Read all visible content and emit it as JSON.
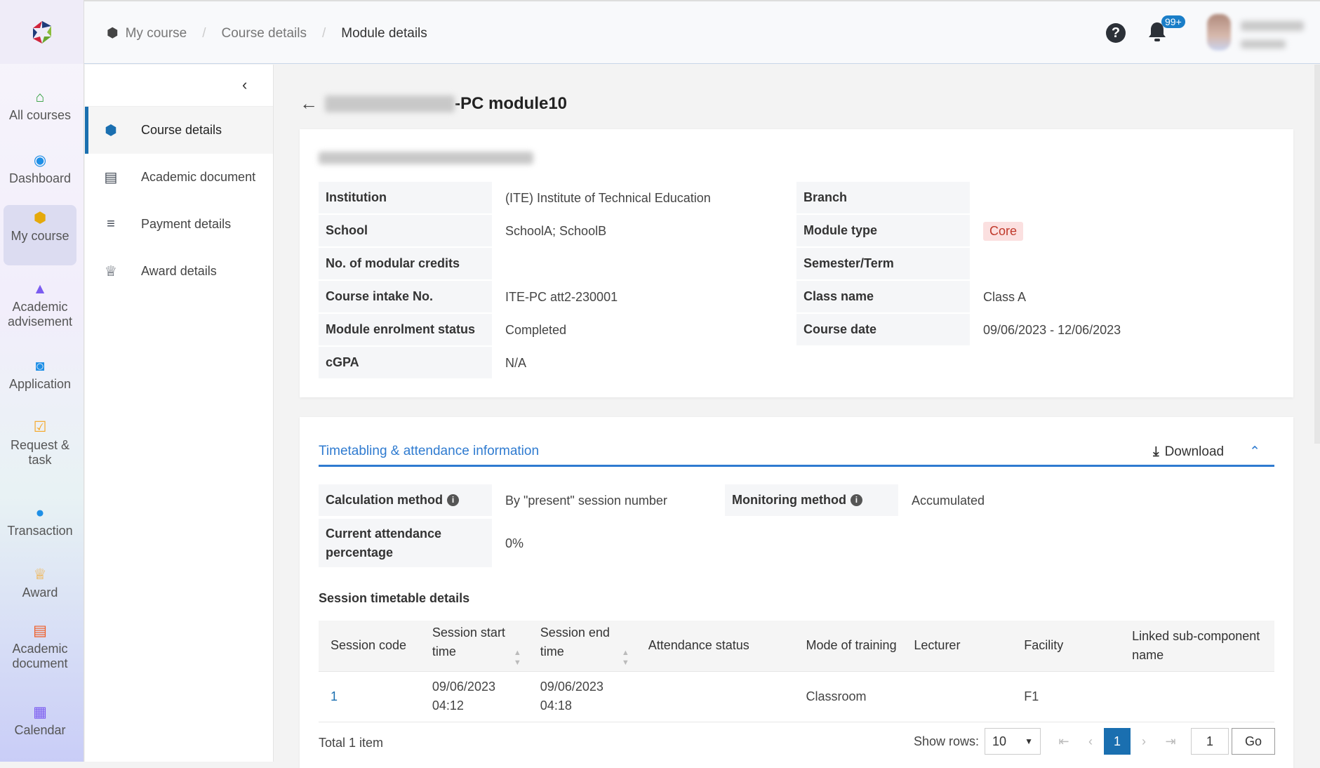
{
  "breadcrumb": [
    "My course",
    "Course details",
    "Module details"
  ],
  "notifications": {
    "badge": "99+"
  },
  "rail": [
    {
      "label": "All courses",
      "icon": "home-icon",
      "color": "#2e9d3a"
    },
    {
      "label": "Dashboard",
      "icon": "compass-icon",
      "color": "#1e8fe6"
    },
    {
      "label": "My course",
      "icon": "box-icon",
      "color": "#e5a90b",
      "active": true
    },
    {
      "label": "Academic advisement",
      "icon": "graduation-cap-icon",
      "color": "#7b5cf0"
    },
    {
      "label": "Application",
      "icon": "reader-icon",
      "color": "#1e8fe6"
    },
    {
      "label": "Request & task",
      "icon": "calendar-check-icon",
      "color": "#f5a623"
    },
    {
      "label": "Transaction",
      "icon": "money-chat-icon",
      "color": "#1e8fe6"
    },
    {
      "label": "Award",
      "icon": "trophy-icon",
      "color": "#f5a623"
    },
    {
      "label": "Academic document",
      "icon": "pdf-icon",
      "color": "#f05a22"
    },
    {
      "label": "Calendar",
      "icon": "calendar-icon",
      "color": "#7b5cf0"
    }
  ],
  "subnav": [
    {
      "label": "Course details",
      "icon": "box-icon",
      "active": true
    },
    {
      "label": "Academic document",
      "icon": "pdf-icon"
    },
    {
      "label": "Payment details",
      "icon": "coins-icon"
    },
    {
      "label": "Award details",
      "icon": "trophy-icon"
    }
  ],
  "page": {
    "title_visible": "-PC module10"
  },
  "details": {
    "left": [
      {
        "label": "Institution",
        "value": "(ITE) Institute of Technical Education"
      },
      {
        "label": "School",
        "value": "SchoolA; SchoolB"
      },
      {
        "label": "No. of modular credits",
        "value": ""
      },
      {
        "label": "Course intake No.",
        "value": "ITE-PC att2-230001"
      },
      {
        "label": "Module enrolment status",
        "value": "Completed"
      },
      {
        "label": "cGPA",
        "value": "N/A"
      }
    ],
    "right": [
      {
        "label": "Branch",
        "value": ""
      },
      {
        "label": "Module type",
        "value": "Core"
      },
      {
        "label": "Semester/Term",
        "value": ""
      },
      {
        "label": "Class name",
        "value": "Class A"
      },
      {
        "label": "Course date",
        "value": "09/06/2023 - 12/06/2023"
      }
    ]
  },
  "attendance": {
    "title": "Timetabling & attendance information",
    "download": "Download",
    "calc_label": "Calculation method",
    "calc_value": "By \"present\" session number",
    "mon_label": "Monitoring method",
    "mon_value": "Accumulated",
    "pct_label": "Current attendance percentage",
    "pct_value": "0%",
    "table_title": "Session timetable details",
    "columns": [
      "Session code",
      "Session start time",
      "Session end time",
      "Attendance status",
      "Mode of training",
      "Lecturer",
      "Facility",
      "Linked sub-component name"
    ],
    "rows": [
      [
        "1",
        "09/06/2023 04:12",
        "09/06/2023 04:18",
        "",
        "Classroom",
        "",
        "F1",
        ""
      ]
    ],
    "total": "Total 1 item",
    "show_rows_label": "Show rows:",
    "show_rows": "10",
    "current_page": "1",
    "goto_value": "1",
    "go": "Go"
  },
  "colors": {
    "accent": "#2f7bd0",
    "primary": "#1a6fb0"
  }
}
